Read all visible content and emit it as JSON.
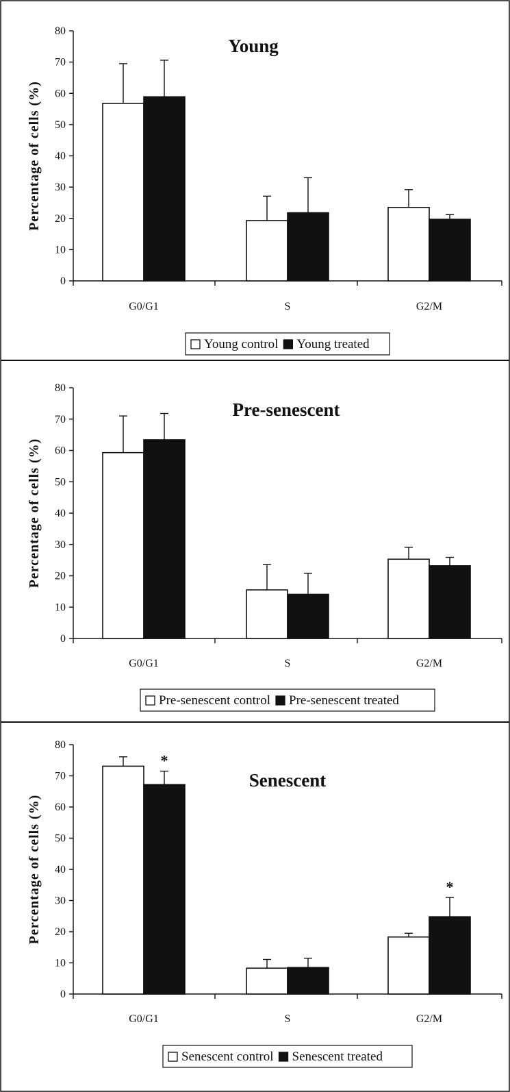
{
  "chart_data": [
    {
      "type": "bar",
      "title": "Young",
      "ylabel": "Percentage of cells (%)",
      "xlabel": "",
      "ylim": [
        0,
        80
      ],
      "yticks": [
        0,
        10,
        20,
        30,
        40,
        50,
        60,
        70,
        80
      ],
      "categories": [
        "G0/G1",
        "S",
        "G2/M"
      ],
      "series": [
        {
          "name": "Young control",
          "color": "#ffffff",
          "values": [
            56.8,
            19.3,
            23.5
          ],
          "errors": [
            12.7,
            7.8,
            5.7
          ]
        },
        {
          "name": "Young treated",
          "color": "#111111",
          "values": [
            58.9,
            21.8,
            19.7
          ],
          "errors": [
            11.7,
            11.2,
            1.5
          ]
        }
      ],
      "significance": [],
      "legend": "bottom-center"
    },
    {
      "type": "bar",
      "title": "Pre-senescent",
      "ylabel": "Percentage of cells (%)",
      "xlabel": "",
      "ylim": [
        0,
        80
      ],
      "yticks": [
        0,
        10,
        20,
        30,
        40,
        50,
        60,
        70,
        80
      ],
      "categories": [
        "G0/G1",
        "S",
        "G2/M"
      ],
      "series": [
        {
          "name": "Pre-senescent control",
          "color": "#ffffff",
          "values": [
            59.3,
            15.5,
            25.3
          ],
          "errors": [
            11.7,
            8.1,
            3.8
          ]
        },
        {
          "name": "Pre-senescent treated",
          "color": "#111111",
          "values": [
            63.4,
            14.1,
            23.2
          ],
          "errors": [
            8.4,
            6.7,
            2.7
          ]
        }
      ],
      "significance": [],
      "legend": "bottom-center"
    },
    {
      "type": "bar",
      "title": "Senescent",
      "ylabel": "Percentage of cells (%)",
      "xlabel": "",
      "ylim": [
        0,
        80
      ],
      "yticks": [
        0,
        10,
        20,
        30,
        40,
        50,
        60,
        70,
        80
      ],
      "categories": [
        "G0/G1",
        "S",
        "G2/M"
      ],
      "series": [
        {
          "name": "Senescent control",
          "color": "#ffffff",
          "values": [
            73.1,
            8.3,
            18.3
          ],
          "errors": [
            3.0,
            2.8,
            1.2
          ]
        },
        {
          "name": "Senescent treated",
          "color": "#111111",
          "values": [
            67.2,
            8.5,
            24.8
          ],
          "errors": [
            4.3,
            3.0,
            6.2
          ]
        }
      ],
      "significance": [
        {
          "category": "G0/G1",
          "series": 1,
          "mark": "*"
        },
        {
          "category": "G2/M",
          "series": 1,
          "mark": "*"
        }
      ],
      "legend": "bottom-center"
    }
  ]
}
